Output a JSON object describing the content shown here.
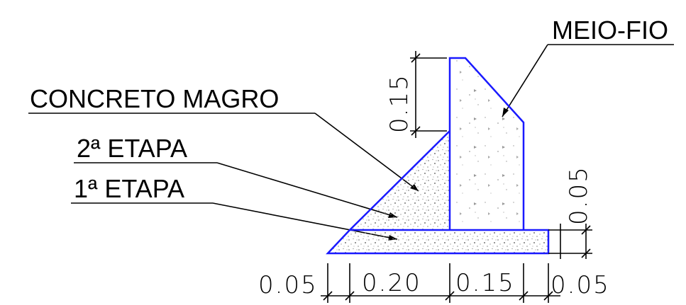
{
  "labels": {
    "meio_fio": "MEIO-FIO",
    "concreto_magro": "CONCRETO MAGRO",
    "etapa2": "2ª ETAPA",
    "etapa1": "1ª ETAPA"
  },
  "dimensions": {
    "bottom": [
      "0.05",
      "0.20",
      "0.15",
      "0.05"
    ],
    "top_height": "0.15",
    "right_height": "0.05",
    "right_base": "0.05"
  },
  "colors": {
    "outline": "#1a1aff",
    "lines": "#000000",
    "fill_dots": "#7a7a7a"
  }
}
